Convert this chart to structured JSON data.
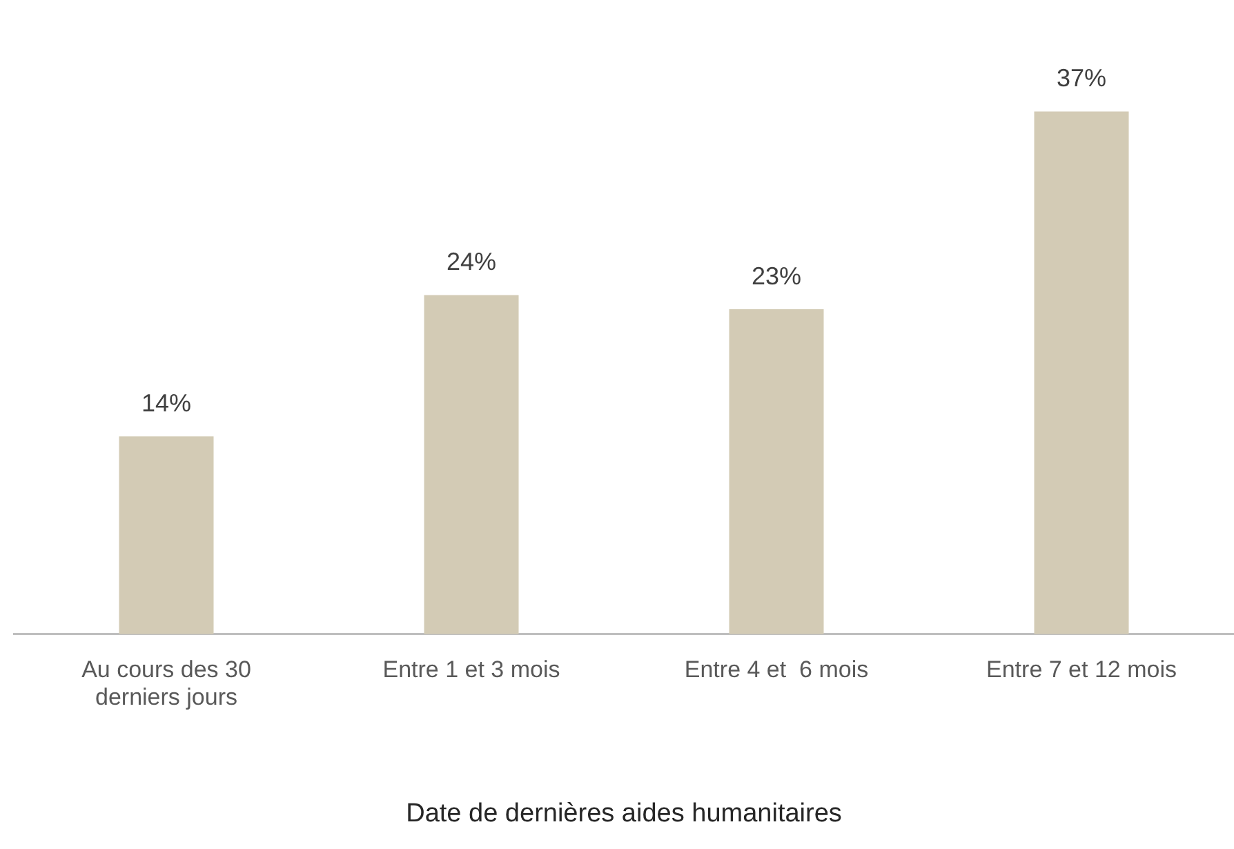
{
  "chart_data": {
    "type": "bar",
    "xlabel": "Date de dernières aides humanitaires",
    "categories": [
      "Au cours des 30 derniers jours",
      "Entre 1 et 3 mois",
      "Entre 4 et  6 mois",
      "Entre 7 et 12 mois"
    ],
    "values": [
      14,
      24,
      23,
      37
    ],
    "value_labels": [
      "14%",
      "24%",
      "23%",
      "37%"
    ],
    "color": "#d3cbb5"
  }
}
